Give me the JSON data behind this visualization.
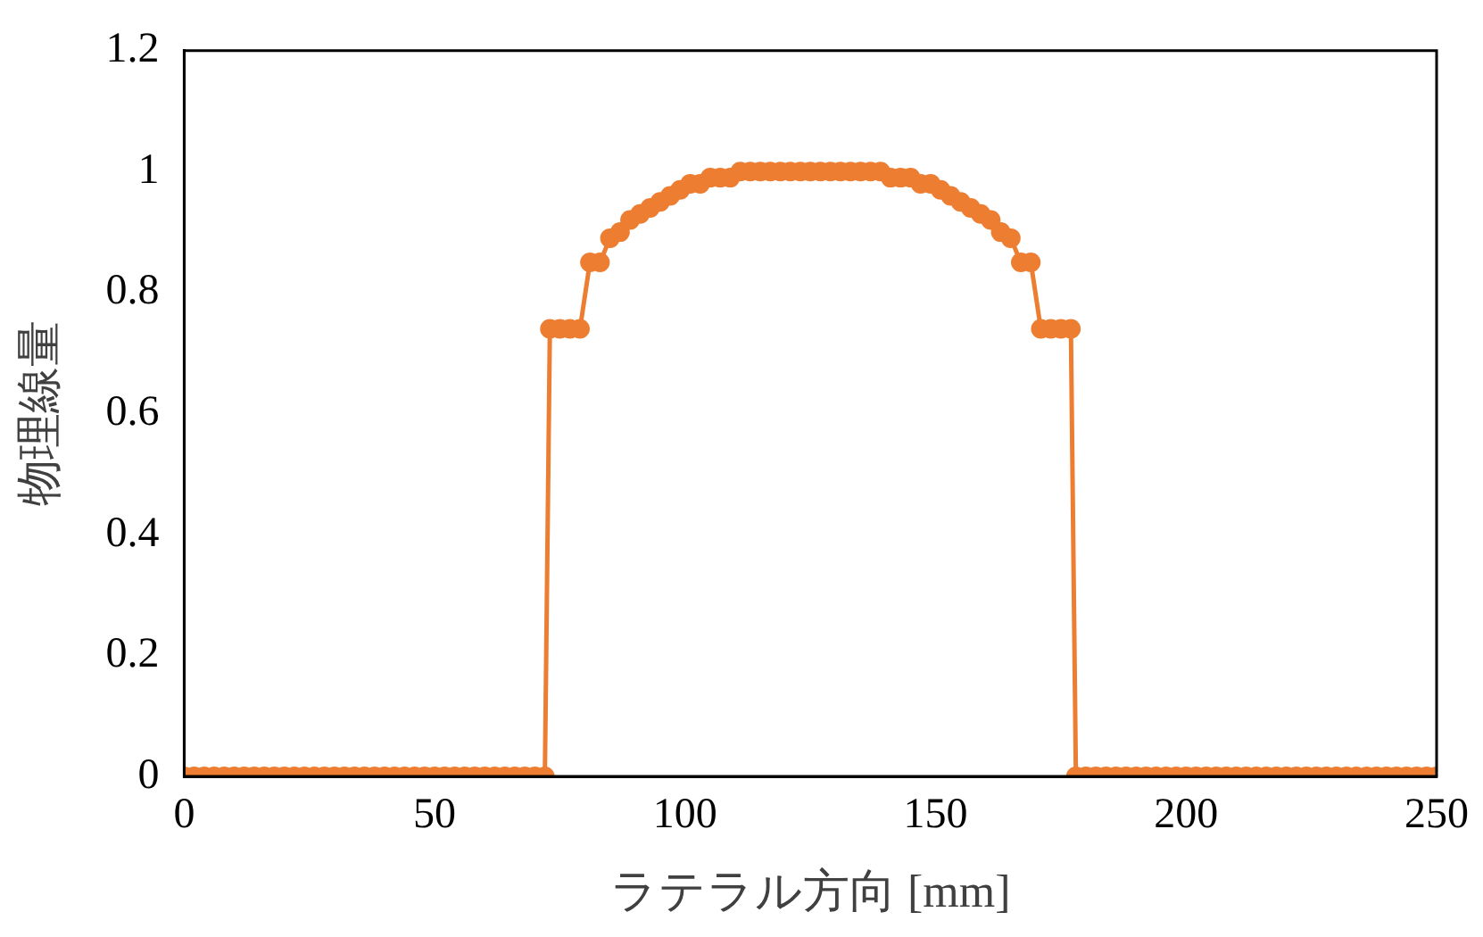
{
  "chart_data": {
    "type": "line",
    "xlabel": "ラテラル方向 [mm]",
    "ylabel": "物理線量",
    "xlim": [
      0,
      250
    ],
    "xticks": [
      0,
      50,
      100,
      150,
      200,
      250
    ],
    "ylim": [
      0,
      1.2
    ],
    "yticks": [
      0,
      0.2,
      0.4,
      0.6,
      0.8,
      1,
      1.2
    ],
    "grid": false,
    "legend": false,
    "marker": "circle",
    "line_style": "solid",
    "series": [
      {
        "color": "#ed7d31",
        "x": [
          0,
          2,
          4,
          6,
          8,
          10,
          12,
          14,
          16,
          18,
          20,
          22,
          24,
          26,
          28,
          30,
          32,
          34,
          36,
          38,
          40,
          42,
          44,
          46,
          48,
          50,
          52,
          54,
          56,
          58,
          60,
          62,
          64,
          66,
          68,
          70,
          72,
          73,
          75,
          77,
          79,
          81,
          83,
          85,
          87,
          89,
          91,
          93,
          95,
          97,
          99,
          101,
          103,
          105,
          107,
          109,
          111,
          113,
          115,
          117,
          119,
          121,
          123,
          125,
          127,
          129,
          131,
          133,
          135,
          137,
          139,
          141,
          143,
          145,
          147,
          149,
          151,
          153,
          155,
          157,
          159,
          161,
          163,
          165,
          167,
          169,
          171,
          173,
          175,
          177,
          178,
          180,
          182,
          184,
          186,
          188,
          190,
          192,
          194,
          196,
          198,
          200,
          202,
          204,
          206,
          208,
          210,
          212,
          214,
          216,
          218,
          220,
          222,
          224,
          226,
          228,
          230,
          232,
          234,
          236,
          238,
          240,
          242,
          244,
          246,
          248,
          250
        ],
        "values": [
          0,
          0,
          0,
          0,
          0,
          0,
          0,
          0,
          0,
          0,
          0,
          0,
          0,
          0,
          0,
          0,
          0,
          0,
          0,
          0,
          0,
          0,
          0,
          0,
          0,
          0,
          0,
          0,
          0,
          0,
          0,
          0,
          0,
          0,
          0,
          0,
          0,
          0.74,
          0.74,
          0.74,
          0.74,
          0.85,
          0.85,
          0.89,
          0.9,
          0.92,
          0.93,
          0.94,
          0.95,
          0.96,
          0.97,
          0.98,
          0.98,
          0.99,
          0.99,
          0.99,
          1,
          1,
          1,
          1,
          1,
          1,
          1,
          1,
          1,
          1,
          1,
          1,
          1,
          1,
          1,
          0.99,
          0.99,
          0.99,
          0.98,
          0.98,
          0.97,
          0.96,
          0.95,
          0.94,
          0.93,
          0.92,
          0.9,
          0.89,
          0.85,
          0.85,
          0.74,
          0.74,
          0.74,
          0.74,
          0,
          0,
          0,
          0,
          0,
          0,
          0,
          0,
          0,
          0,
          0,
          0,
          0,
          0,
          0,
          0,
          0,
          0,
          0,
          0,
          0,
          0,
          0,
          0,
          0,
          0,
          0,
          0,
          0,
          0,
          0,
          0,
          0,
          0,
          0,
          0,
          0
        ]
      }
    ]
  }
}
